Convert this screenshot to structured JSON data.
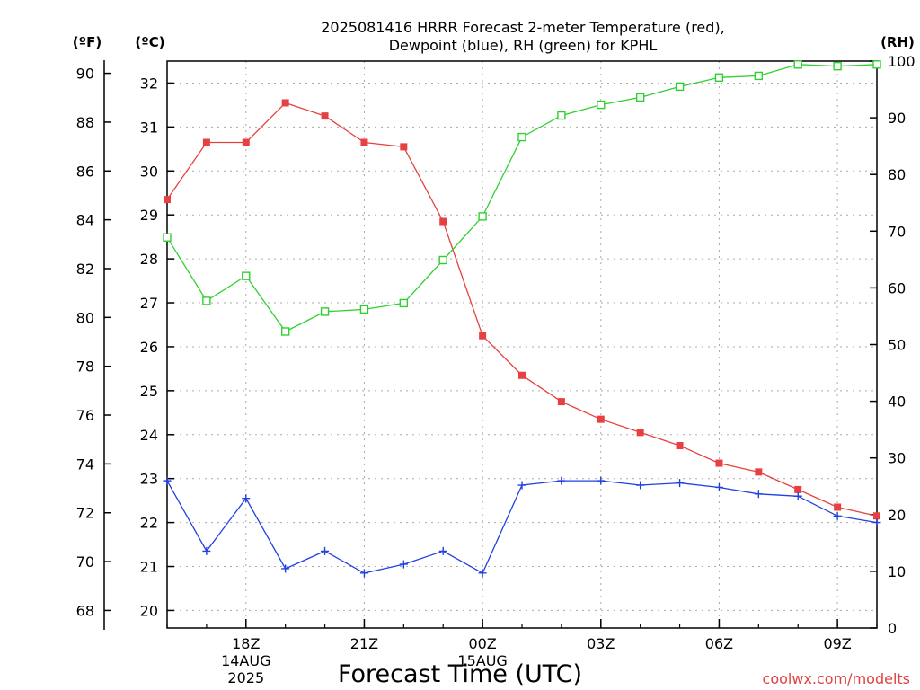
{
  "chart_data": {
    "type": "line",
    "title": "2025081416 HRRR Forecast 2-meter Temperature (red),",
    "subtitle": "Dewpoint (blue), RH (green) for KPHL",
    "xlabel": "Forecast Time (UTC)",
    "credit": "coolwx.com/modelts",
    "units": {
      "fahrenheit": "(ºF)",
      "celsius": "(ºC)",
      "rh": "(RH)"
    },
    "x": [
      "16Z",
      "17Z",
      "18Z",
      "19Z",
      "20Z",
      "21Z",
      "22Z",
      "23Z",
      "00Z",
      "01Z",
      "02Z",
      "03Z",
      "04Z",
      "05Z",
      "06Z",
      "07Z",
      "08Z",
      "09Z",
      "10Z"
    ],
    "xticks": [
      {
        "label": "18Z",
        "sub": [
          "14AUG",
          "2025"
        ]
      },
      {
        "label": "21Z",
        "sub": []
      },
      {
        "label": "00Z",
        "sub": [
          "15AUG"
        ]
      },
      {
        "label": "03Z",
        "sub": []
      },
      {
        "label": "06Z",
        "sub": []
      },
      {
        "label": "09Z",
        "sub": []
      }
    ],
    "yaxis_f": {
      "ticks": [
        "68",
        "70",
        "72",
        "74",
        "76",
        "78",
        "80",
        "82",
        "84",
        "86",
        "88",
        "90"
      ]
    },
    "yaxis_c": {
      "ticks": [
        "20",
        "21",
        "22",
        "23",
        "24",
        "25",
        "26",
        "27",
        "28",
        "29",
        "30",
        "31",
        "32"
      ],
      "ylim": [
        19.6,
        32.5
      ]
    },
    "yaxis_rh": {
      "ticks": [
        "0",
        "10",
        "20",
        "30",
        "40",
        "50",
        "60",
        "70",
        "80",
        "90",
        "100"
      ],
      "ylim": [
        0,
        100
      ]
    },
    "series": [
      {
        "color": "#e84040",
        "marker": "filled-square",
        "axis": "c",
        "values": [
          29.35,
          30.65,
          30.65,
          31.55,
          31.25,
          30.65,
          30.55,
          28.85,
          26.25,
          25.35,
          24.75,
          24.35,
          24.05,
          23.75,
          23.35,
          23.15,
          22.75,
          22.35,
          22.15
        ]
      },
      {
        "color": "#2040e0",
        "marker": "plus",
        "axis": "c",
        "values": [
          22.95,
          21.35,
          22.55,
          20.95,
          21.35,
          20.85,
          21.05,
          21.35,
          20.85,
          22.85,
          22.95,
          22.95,
          22.85,
          22.9,
          22.8,
          22.65,
          22.6,
          22.15,
          22.0
        ]
      },
      {
        "color": "#30d030",
        "marker": "open-square",
        "axis": "rh",
        "values": [
          68.9,
          57.7,
          62.1,
          52.3,
          55.8,
          56.2,
          57.3,
          64.9,
          72.6,
          86.6,
          90.4,
          92.3,
          93.6,
          95.5,
          97.1,
          97.4,
          99.4,
          99.1,
          99.4
        ]
      }
    ],
    "grid": true,
    "legend": "none"
  }
}
